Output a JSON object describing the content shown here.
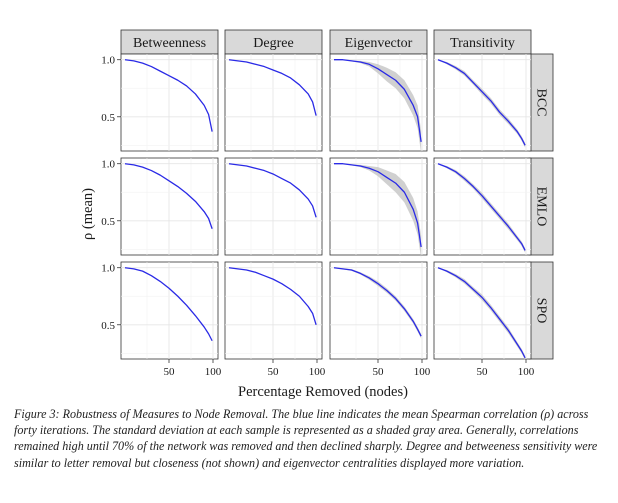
{
  "chart_data": {
    "type": "line",
    "facet_columns": [
      "Betweenness",
      "Degree",
      "Eigenvector",
      "Transitivity"
    ],
    "facet_rows": [
      "BCC",
      "EMLO",
      "SPO"
    ],
    "xlabel": "Percentage Removed (nodes)",
    "ylabel": "ρ (mean)",
    "xlim": [
      0,
      100
    ],
    "ylim": [
      0.2,
      1.05
    ],
    "x_ticks": [
      50,
      100
    ],
    "y_ticks": [
      0.5,
      1.0
    ],
    "x_tick_labels": [
      "50",
      "100"
    ],
    "y_tick_labels": [
      "0.5",
      "1.0"
    ],
    "grid": true,
    "line_color": "#2a2ae6",
    "band_color": "#c8c8c8",
    "x": [
      0,
      10,
      20,
      30,
      40,
      50,
      60,
      70,
      80,
      90,
      95,
      99
    ],
    "panels": [
      {
        "row": "BCC",
        "col": "Betweenness",
        "mean": [
          1.0,
          0.99,
          0.97,
          0.94,
          0.9,
          0.86,
          0.82,
          0.77,
          0.7,
          0.6,
          0.52,
          0.37
        ],
        "sd": [
          0,
          0,
          0,
          0,
          0,
          0,
          0,
          0,
          0,
          0,
          0,
          0
        ]
      },
      {
        "row": "BCC",
        "col": "Degree",
        "mean": [
          1.0,
          0.99,
          0.98,
          0.96,
          0.94,
          0.91,
          0.88,
          0.84,
          0.78,
          0.7,
          0.63,
          0.51
        ],
        "sd": [
          0,
          0,
          0,
          0,
          0,
          0,
          0,
          0,
          0,
          0,
          0,
          0
        ]
      },
      {
        "row": "BCC",
        "col": "Eigenvector",
        "mean": [
          1.0,
          1.0,
          0.99,
          0.98,
          0.96,
          0.92,
          0.87,
          0.82,
          0.74,
          0.6,
          0.5,
          0.28
        ],
        "sd": [
          0,
          0.002,
          0.005,
          0.01,
          0.02,
          0.04,
          0.06,
          0.07,
          0.08,
          0.09,
          0.1,
          0.1
        ]
      },
      {
        "row": "BCC",
        "col": "Transitivity",
        "mean": [
          1.0,
          0.97,
          0.93,
          0.88,
          0.8,
          0.72,
          0.64,
          0.54,
          0.46,
          0.37,
          0.31,
          0.25
        ],
        "sd": [
          0,
          0.01,
          0.015,
          0.02,
          0.02,
          0.025,
          0.025,
          0.025,
          0.025,
          0.02,
          0.02,
          0.02
        ]
      },
      {
        "row": "EMLO",
        "col": "Betweenness",
        "mean": [
          1.0,
          0.99,
          0.97,
          0.94,
          0.9,
          0.85,
          0.8,
          0.74,
          0.67,
          0.58,
          0.52,
          0.43
        ],
        "sd": [
          0,
          0,
          0,
          0,
          0,
          0,
          0,
          0,
          0,
          0,
          0,
          0.01
        ]
      },
      {
        "row": "EMLO",
        "col": "Degree",
        "mean": [
          1.0,
          0.99,
          0.98,
          0.96,
          0.94,
          0.91,
          0.87,
          0.83,
          0.77,
          0.69,
          0.63,
          0.53
        ],
        "sd": [
          0,
          0,
          0,
          0,
          0,
          0,
          0,
          0,
          0,
          0,
          0,
          0
        ]
      },
      {
        "row": "EMLO",
        "col": "Eigenvector",
        "mean": [
          1.0,
          1.0,
          0.99,
          0.98,
          0.96,
          0.93,
          0.88,
          0.83,
          0.75,
          0.6,
          0.48,
          0.27
        ],
        "sd": [
          0,
          0.002,
          0.005,
          0.01,
          0.02,
          0.04,
          0.06,
          0.08,
          0.09,
          0.1,
          0.1,
          0.1
        ]
      },
      {
        "row": "EMLO",
        "col": "Transitivity",
        "mean": [
          1.0,
          0.97,
          0.93,
          0.87,
          0.8,
          0.72,
          0.63,
          0.54,
          0.45,
          0.35,
          0.3,
          0.24
        ],
        "sd": [
          0,
          0.01,
          0.015,
          0.02,
          0.02,
          0.025,
          0.025,
          0.025,
          0.025,
          0.02,
          0.02,
          0.02
        ]
      },
      {
        "row": "SPO",
        "col": "Betweenness",
        "mean": [
          1.0,
          0.99,
          0.97,
          0.93,
          0.88,
          0.82,
          0.75,
          0.67,
          0.58,
          0.48,
          0.42,
          0.36
        ],
        "sd": [
          0,
          0,
          0,
          0,
          0,
          0,
          0,
          0,
          0,
          0,
          0,
          0
        ]
      },
      {
        "row": "SPO",
        "col": "Degree",
        "mean": [
          1.0,
          0.99,
          0.98,
          0.96,
          0.93,
          0.9,
          0.86,
          0.81,
          0.75,
          0.66,
          0.6,
          0.5
        ],
        "sd": [
          0,
          0,
          0,
          0,
          0,
          0,
          0,
          0,
          0,
          0,
          0,
          0
        ]
      },
      {
        "row": "SPO",
        "col": "Eigenvector",
        "mean": [
          1.0,
          0.99,
          0.98,
          0.95,
          0.91,
          0.86,
          0.8,
          0.73,
          0.64,
          0.53,
          0.46,
          0.4
        ],
        "sd": [
          0,
          0.005,
          0.008,
          0.01,
          0.015,
          0.02,
          0.02,
          0.02,
          0.02,
          0.02,
          0.02,
          0.02
        ]
      },
      {
        "row": "SPO",
        "col": "Transitivity",
        "mean": [
          1.0,
          0.97,
          0.93,
          0.88,
          0.81,
          0.74,
          0.65,
          0.55,
          0.45,
          0.33,
          0.27,
          0.21
        ],
        "sd": [
          0,
          0.01,
          0.015,
          0.02,
          0.02,
          0.025,
          0.025,
          0.025,
          0.025,
          0.02,
          0.02,
          0.02
        ]
      }
    ]
  },
  "caption": "Figure 3: Robustness of Measures to Node Removal. The blue line indicates the mean Spearman correlation (ρ) across forty iterations. The standard deviation at each sample is represented as a shaded gray area. Generally, correlations remained high until 70% of the network was removed and then declined sharply. Degree and betweeness sensitivity were similar to letter removal but closeness (not shown) and eigenvector centralities displayed more variation."
}
